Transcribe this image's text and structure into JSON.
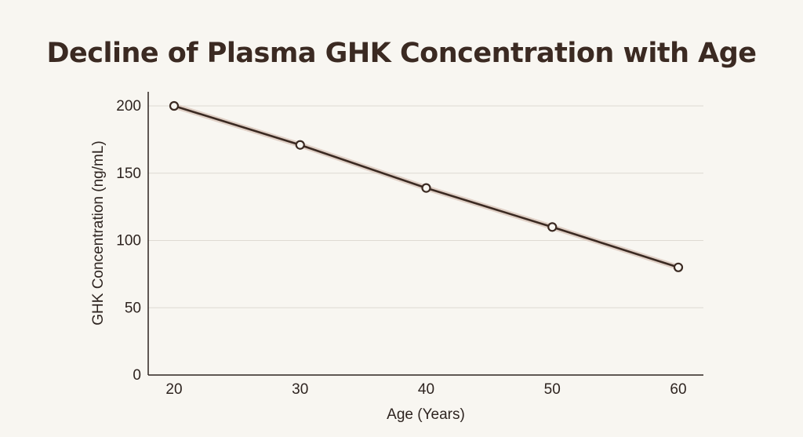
{
  "chart_data": {
    "type": "line",
    "title": "Decline of Plasma GHK Concentration with Age",
    "xlabel": "Age (Years)",
    "ylabel": "GHK Concentration (ng/mL)",
    "x": [
      20,
      30,
      40,
      50,
      60
    ],
    "series": [
      {
        "name": "GHK Concentration",
        "values": [
          200,
          171,
          139,
          110,
          80
        ]
      }
    ],
    "xticks": [
      "20",
      "30",
      "40",
      "50",
      "60"
    ],
    "yticks": [
      "0",
      "50",
      "100",
      "150",
      "200"
    ],
    "xlim": [
      20,
      60
    ],
    "ylim": [
      0,
      200
    ],
    "grid": true,
    "colors": {
      "line": "#3b2a22",
      "halo": "#d9c7bb",
      "marker_fill": "#f8f6f1",
      "grid": "#dedad2",
      "axis": "#2e2420"
    }
  }
}
